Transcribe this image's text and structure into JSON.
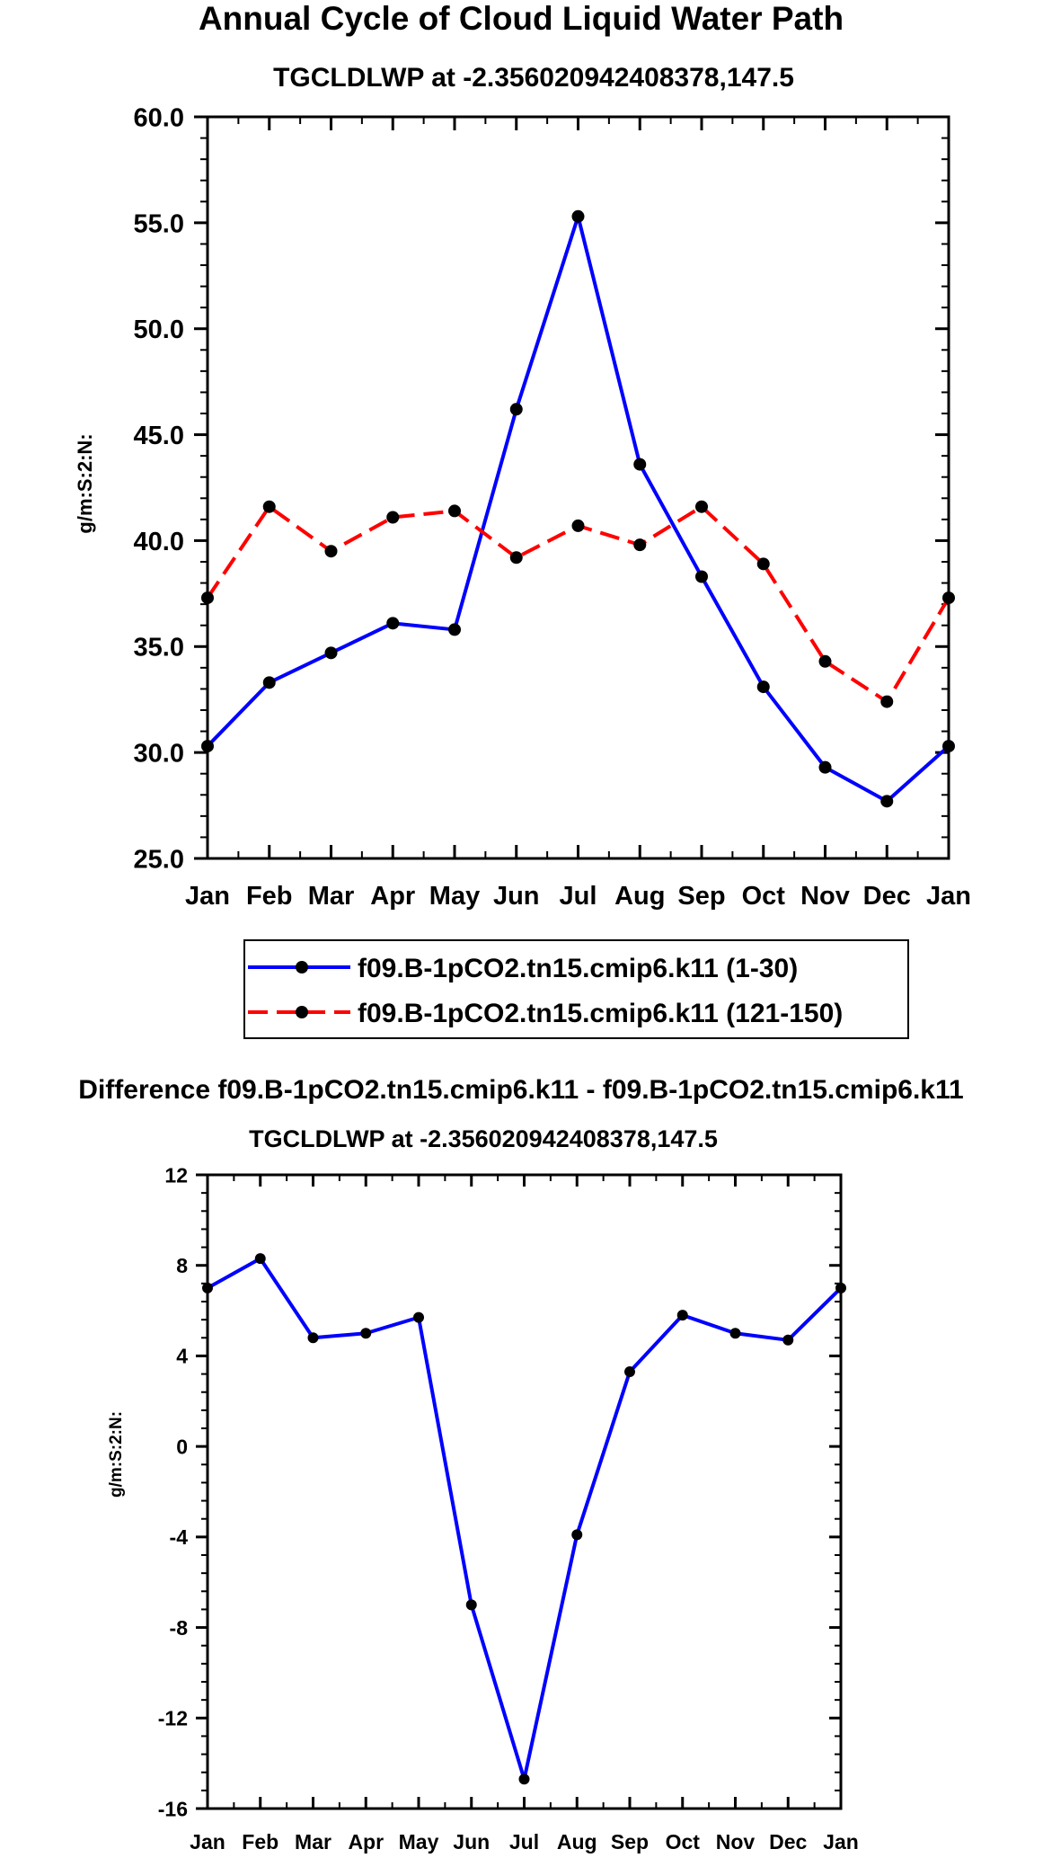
{
  "chart_data": [
    {
      "type": "line",
      "title": "Annual Cycle of Cloud Liquid Water Path",
      "subtitle": "TGCLDLWP at -2.356020942408378,147.5",
      "xlabel": "",
      "ylabel": "g/m:S:2:N:",
      "categories": [
        "Jan",
        "Feb",
        "Mar",
        "Apr",
        "May",
        "Jun",
        "Jul",
        "Aug",
        "Sep",
        "Oct",
        "Nov",
        "Dec",
        "Jan"
      ],
      "ylim": [
        25.0,
        60.0
      ],
      "yticks": [
        25.0,
        30.0,
        35.0,
        40.0,
        45.0,
        50.0,
        55.0,
        60.0
      ],
      "ytick_labels": [
        "25.0",
        "30.0",
        "35.0",
        "40.0",
        "45.0",
        "50.0",
        "55.0",
        "60.0"
      ],
      "grid": false,
      "legend_position": "bottom-center",
      "series": [
        {
          "name": "f09.B-1pCO2.tn15.cmip6.k11 (1-30)",
          "color": "#0000ff",
          "style": "solid",
          "values": [
            30.3,
            33.3,
            34.7,
            36.1,
            35.8,
            46.2,
            55.3,
            43.6,
            38.3,
            33.1,
            29.3,
            27.7,
            30.3
          ]
        },
        {
          "name": "f09.B-1pCO2.tn15.cmip6.k11 (121-150)",
          "color": "#ff0000",
          "style": "dashed",
          "values": [
            37.3,
            41.6,
            39.5,
            41.1,
            41.4,
            39.2,
            40.7,
            39.8,
            41.6,
            38.9,
            34.3,
            32.4,
            37.3
          ]
        }
      ]
    },
    {
      "type": "line",
      "title": "Difference f09.B-1pCO2.tn15.cmip6.k11 - f09.B-1pCO2.tn15.cmip6.k11",
      "subtitle": "TGCLDLWP at -2.356020942408378,147.5",
      "xlabel": "",
      "ylabel": "g/m:S:2:N:",
      "categories": [
        "Jan",
        "Feb",
        "Mar",
        "Apr",
        "May",
        "Jun",
        "Jul",
        "Aug",
        "Sep",
        "Oct",
        "Nov",
        "Dec",
        "Jan"
      ],
      "ylim": [
        -16,
        12
      ],
      "yticks": [
        -16,
        -12,
        -8,
        -4,
        0,
        4,
        8,
        12
      ],
      "ytick_labels": [
        "-16",
        "-12",
        "-8",
        "-4",
        "0",
        "4",
        "8",
        "12"
      ],
      "grid": false,
      "series": [
        {
          "name": "difference",
          "color": "#0000ff",
          "style": "solid",
          "values": [
            7.0,
            8.3,
            4.8,
            5.0,
            5.7,
            -7.0,
            -14.7,
            -3.9,
            3.3,
            5.8,
            5.0,
            4.7,
            7.0
          ]
        }
      ]
    }
  ]
}
